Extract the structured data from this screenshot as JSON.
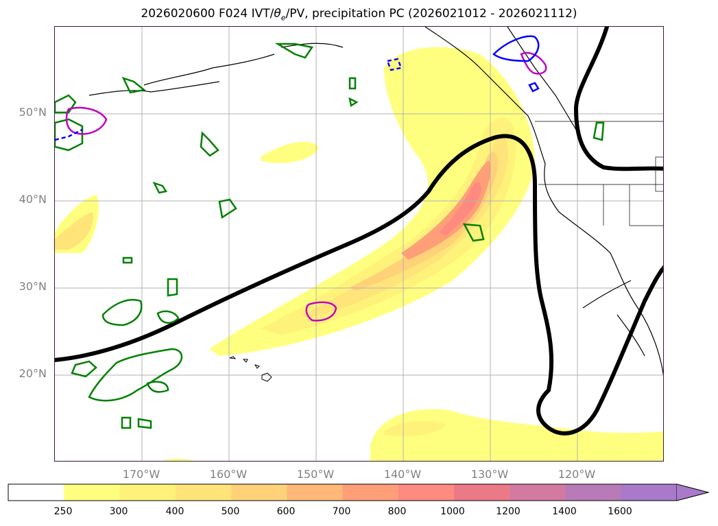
{
  "title": {
    "main": "2026020600 F024 IVT/",
    "theta": "θ",
    "theta_sub": "e",
    "rest": "/PV, precipitation PC (2026021012 - 2026021112)"
  },
  "map": {
    "lat_labels": [
      "50°N",
      "40°N",
      "30°N",
      "20°N"
    ],
    "lon_labels": [
      "170°W",
      "160°W",
      "150°W",
      "140°W",
      "130°W",
      "120°W"
    ],
    "lat_ticks": [
      50,
      40,
      30,
      20
    ],
    "lon_ticks": [
      -170,
      -160,
      -150,
      -140,
      -130,
      -120
    ],
    "extent": {
      "lon_min": -180,
      "lon_max": -110,
      "lat_min": 10,
      "lat_max": 60
    }
  },
  "colorbar": {
    "tick_labels": [
      "250",
      "300",
      "400",
      "500",
      "600",
      "700",
      "800",
      "1000",
      "1200",
      "1400",
      "1600"
    ],
    "colors": [
      "#ffffff",
      "#ffff7f",
      "#fff27a",
      "#ffe47a",
      "#ffd27a",
      "#ffb877",
      "#ff9f77",
      "#ff8a80",
      "#ec7a86",
      "#d27aa0",
      "#b97ab8",
      "#a87ac9"
    ],
    "extend": "max"
  },
  "legend_colors": {
    "theta_e_contour": "#000000",
    "pv_positive": "#008000",
    "pv_magenta": "#c000c0",
    "pv_blue": "#0000ff"
  }
}
